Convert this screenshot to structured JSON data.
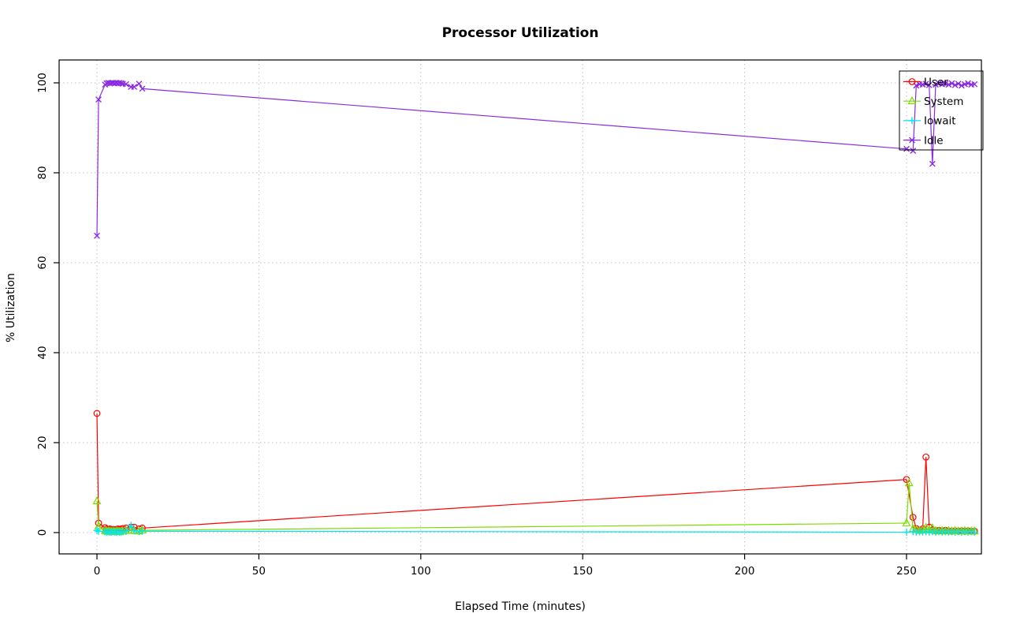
{
  "title": "Processor Utilization",
  "x_axis_label": "Elapsed Time (minutes)",
  "y_axis_label": "% Utilization",
  "chart_data": {
    "type": "line",
    "title": "Processor Utilization",
    "xlabel": "Elapsed Time (minutes)",
    "ylabel": "% Utilization",
    "x_ticks": [
      0,
      50,
      100,
      150,
      200,
      250
    ],
    "y_ticks": [
      0,
      20,
      40,
      60,
      80,
      100
    ],
    "xlim": [
      -11,
      276
    ],
    "ylim": [
      -4.5,
      104.5
    ],
    "grid": true,
    "grid_style": "dotted",
    "legend_position": "top-right",
    "series": [
      {
        "name": "User",
        "color": "#FF0000",
        "marker": "circle",
        "points": [
          [
            0,
            26.5
          ],
          [
            0.5,
            2.1
          ],
          [
            2.5,
            1.1
          ],
          [
            3,
            0.8
          ],
          [
            3.5,
            0.7
          ],
          [
            4,
            0.8
          ],
          [
            4.5,
            0.6
          ],
          [
            5,
            0.7
          ],
          [
            5.5,
            0.6
          ],
          [
            6,
            0.7
          ],
          [
            6.5,
            0.8
          ],
          [
            7,
            0.7
          ],
          [
            7.5,
            0.8
          ],
          [
            8,
            0.9
          ],
          [
            9,
            1.0
          ],
          [
            10.5,
            1.2
          ],
          [
            11.5,
            1.2
          ],
          [
            13,
            0.8
          ],
          [
            14,
            1.0
          ],
          [
            250,
            11.8
          ],
          [
            252,
            3.4
          ],
          [
            253,
            0.9
          ],
          [
            254,
            0.5
          ],
          [
            255,
            0.8
          ],
          [
            256,
            16.8
          ],
          [
            257,
            1.2
          ],
          [
            258,
            0.6
          ],
          [
            259,
            0.4
          ],
          [
            260,
            0.5
          ],
          [
            261,
            0.4
          ],
          [
            262,
            0.5
          ],
          [
            263,
            0.4
          ],
          [
            264,
            0.3
          ],
          [
            265,
            0.4
          ],
          [
            266,
            0.3
          ],
          [
            267,
            0.4
          ],
          [
            268,
            0.3
          ],
          [
            269,
            0.4
          ],
          [
            270,
            0.3
          ],
          [
            271,
            0.3
          ]
        ]
      },
      {
        "name": "System",
        "color": "#7CDC00",
        "marker": "triangle",
        "points": [
          [
            0,
            7.0
          ],
          [
            0.5,
            1.4
          ],
          [
            2.5,
            0.4
          ],
          [
            3,
            0.3
          ],
          [
            3.5,
            0.3
          ],
          [
            4,
            0.3
          ],
          [
            4.5,
            0.2
          ],
          [
            5,
            0.3
          ],
          [
            5.5,
            0.2
          ],
          [
            6,
            0.3
          ],
          [
            6.5,
            0.3
          ],
          [
            7,
            0.2
          ],
          [
            7.5,
            0.3
          ],
          [
            8,
            0.3
          ],
          [
            9,
            0.4
          ],
          [
            10.5,
            0.5
          ],
          [
            11.5,
            0.4
          ],
          [
            13,
            0.3
          ],
          [
            14,
            0.5
          ],
          [
            250,
            2.1
          ],
          [
            250.8,
            11.0
          ],
          [
            252,
            0.8
          ],
          [
            253,
            0.6
          ],
          [
            254,
            0.4
          ],
          [
            255,
            0.5
          ],
          [
            256,
            1.1
          ],
          [
            257,
            0.5
          ],
          [
            258,
            1.0
          ],
          [
            259,
            0.4
          ],
          [
            260,
            0.3
          ],
          [
            261,
            0.4
          ],
          [
            262,
            0.3
          ],
          [
            263,
            0.4
          ],
          [
            264,
            0.3
          ],
          [
            265,
            0.4
          ],
          [
            266,
            0.3
          ],
          [
            267,
            0.3
          ],
          [
            268,
            0.4
          ],
          [
            269,
            0.3
          ],
          [
            270,
            0.3
          ],
          [
            271,
            0.3
          ]
        ]
      },
      {
        "name": "Iowait",
        "color": "#00E5EE",
        "marker": "plus",
        "points": [
          [
            0,
            0.5
          ],
          [
            0.5,
            0.3
          ],
          [
            2.5,
            0.2
          ],
          [
            3,
            0.1
          ],
          [
            3.5,
            0.2
          ],
          [
            4,
            0.1
          ],
          [
            4.5,
            0.1
          ],
          [
            5,
            0.2
          ],
          [
            5.5,
            0.1
          ],
          [
            6,
            0.1
          ],
          [
            6.5,
            0.2
          ],
          [
            7,
            0.1
          ],
          [
            7.5,
            0.1
          ],
          [
            8,
            0.2
          ],
          [
            9,
            0.3
          ],
          [
            10.5,
            1.6
          ],
          [
            11.5,
            0.4
          ],
          [
            13,
            0.2
          ],
          [
            14,
            0.3
          ],
          [
            250,
            0.1
          ],
          [
            252,
            0.2
          ],
          [
            253,
            0.1
          ],
          [
            254,
            0.2
          ],
          [
            255,
            0.1
          ],
          [
            256,
            0.2
          ],
          [
            257,
            0.1
          ],
          [
            258,
            0.2
          ],
          [
            259,
            0.1
          ],
          [
            260,
            0.2
          ],
          [
            261,
            0.1
          ],
          [
            262,
            0.2
          ],
          [
            263,
            0.1
          ],
          [
            264,
            0.2
          ],
          [
            265,
            0.1
          ],
          [
            266,
            0.2
          ],
          [
            267,
            0.1
          ],
          [
            268,
            0.2
          ],
          [
            269,
            0.1
          ],
          [
            270,
            0.2
          ],
          [
            271,
            0.1
          ]
        ]
      },
      {
        "name": "Idle",
        "color": "#8A2BE2",
        "marker": "x",
        "points": [
          [
            0,
            66
          ],
          [
            0.5,
            96.3
          ],
          [
            2.5,
            99.6
          ],
          [
            3,
            99.9
          ],
          [
            3.5,
            100
          ],
          [
            4,
            99.9
          ],
          [
            4.5,
            100
          ],
          [
            5,
            100
          ],
          [
            5.5,
            99.9
          ],
          [
            6,
            100
          ],
          [
            6.5,
            99.9
          ],
          [
            7,
            100
          ],
          [
            7.5,
            99.9
          ],
          [
            8,
            99.8
          ],
          [
            9,
            99.7
          ],
          [
            10.5,
            99.1
          ],
          [
            11.5,
            99.1
          ],
          [
            13,
            99.8
          ],
          [
            14,
            98.7
          ],
          [
            250,
            85.3
          ],
          [
            252,
            84.9
          ],
          [
            253,
            99.4
          ],
          [
            254,
            99.7
          ],
          [
            255,
            99.6
          ],
          [
            256,
            99.8
          ],
          [
            257,
            99.5
          ],
          [
            258,
            82
          ],
          [
            259,
            99.6
          ],
          [
            260,
            99.9
          ],
          [
            261,
            99.7
          ],
          [
            262,
            99.8
          ],
          [
            263,
            99.6
          ],
          [
            264,
            99.9
          ],
          [
            265,
            99.5
          ],
          [
            266,
            99.8
          ],
          [
            267,
            99.4
          ],
          [
            268,
            99.7
          ],
          [
            269,
            99.9
          ],
          [
            270,
            99.6
          ],
          [
            271,
            99.7
          ]
        ]
      }
    ]
  }
}
